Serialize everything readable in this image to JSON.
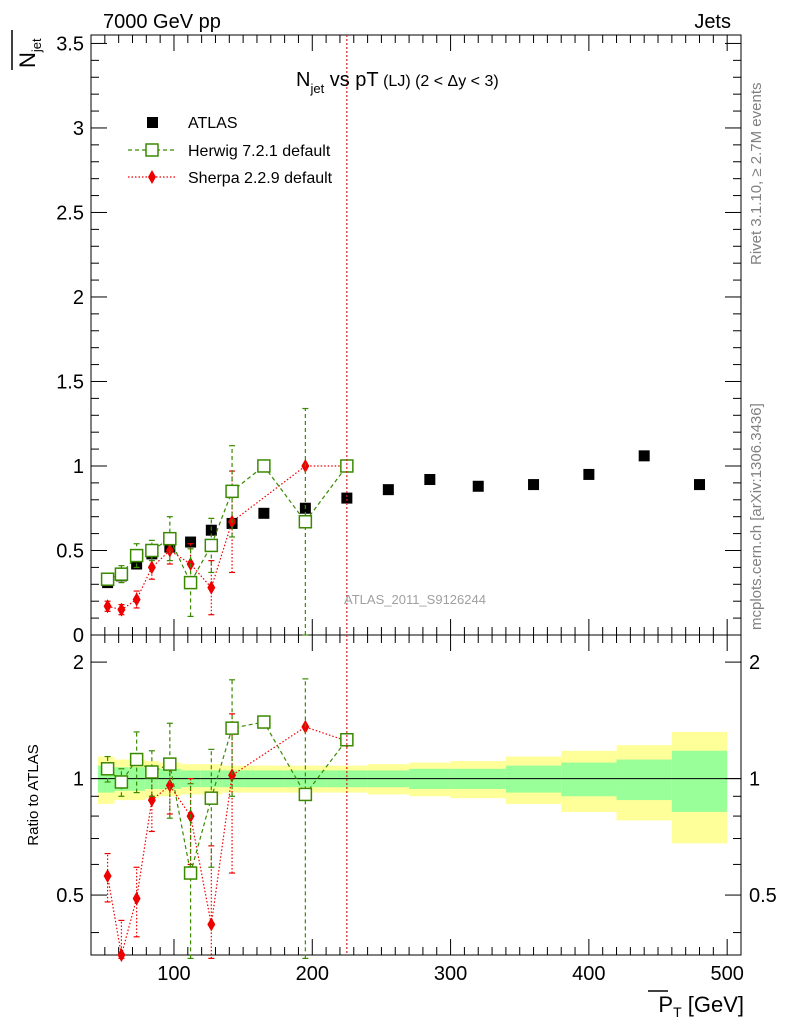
{
  "header": {
    "left": "7000 GeV pp",
    "right": "Jets"
  },
  "plot_title": {
    "main": "N",
    "main_sub": "jet",
    "rest": " vs pT",
    "detail": " (LJ) (2 < Δy < 3)"
  },
  "y_label": {
    "main": "N",
    "sub": "jet"
  },
  "ratio_ylabel": "Ratio to ATLAS",
  "x_label": {
    "main": "P",
    "sub": "T",
    "unit": " [GeV]"
  },
  "side_texts": {
    "rivet": "Rivet 3.1.10, ≥ 2.7M events",
    "mcplots": "mcplots.cern.ch [arXiv:1306.3436]"
  },
  "watermark": "ATLAS_2011_S9126244",
  "legend": {
    "position": "top-left",
    "entries": [
      {
        "key": "atlas",
        "label": "ATLAS"
      },
      {
        "key": "herwig",
        "label": "Herwig 7.2.1 default"
      },
      {
        "key": "sherpa",
        "label": "Sherpa 2.2.9 default"
      }
    ]
  },
  "colors": {
    "atlas": "#000000",
    "herwig": "#3a8a00",
    "sherpa": "#ee0000",
    "band_inner": "#99ff99",
    "band_outer": "#ffff99",
    "vline": "#d12020"
  },
  "chart_data": {
    "type": "scatter",
    "x_axis": {
      "min": 40,
      "max": 510,
      "ticks": [
        100,
        200,
        300,
        400,
        500
      ]
    },
    "main_y_axis": {
      "min": 0,
      "max": 3.55,
      "ticks": [
        0,
        0.5,
        1,
        1.5,
        2,
        2.5,
        3,
        3.5
      ]
    },
    "ratio_y_axis": {
      "min": 0.35,
      "max": 2.35,
      "log": true,
      "ticks": [
        0.5,
        1,
        2
      ]
    },
    "vertical_line_x": 225,
    "atlas": {
      "x": [
        52,
        62,
        73,
        84,
        97,
        112,
        127,
        142,
        165,
        195,
        225,
        255,
        285,
        320,
        360,
        400,
        440,
        480
      ],
      "y": [
        0.31,
        0.35,
        0.42,
        0.48,
        0.52,
        0.55,
        0.62,
        0.66,
        0.72,
        0.75,
        0.81,
        0.86,
        0.92,
        0.88,
        0.89,
        0.95,
        1.06,
        0.89
      ]
    },
    "herwig": {
      "x": [
        52,
        62,
        73,
        84,
        97,
        112,
        127,
        142,
        165,
        195,
        225
      ],
      "y": [
        0.33,
        0.36,
        0.47,
        0.5,
        0.57,
        0.31,
        0.53,
        0.85,
        1.0,
        0.67,
        1.0
      ],
      "err": [
        0.03,
        0.05,
        0.07,
        0.06,
        0.13,
        0.2,
        0.16,
        0.27,
        0.0,
        0.67,
        0.0
      ]
    },
    "sherpa": {
      "x": [
        52,
        62,
        73,
        84,
        97,
        112,
        127,
        142,
        195,
        225
      ],
      "y": [
        0.17,
        0.15,
        0.21,
        0.4,
        0.5,
        0.42,
        0.28,
        0.67,
        1.0,
        1.0
      ],
      "err": [
        0.03,
        0.03,
        0.05,
        0.07,
        0.08,
        0.12,
        0.16,
        0.3,
        0.0,
        0.0
      ]
    },
    "ratio": {
      "herwig": [
        1.06,
        0.98,
        1.12,
        1.04,
        1.09,
        0.57,
        0.89,
        1.35,
        1.4,
        0.91,
        1.26
      ],
      "herwig_err": [
        0.08,
        0.08,
        0.2,
        0.14,
        0.3,
        0.4,
        0.3,
        0.45,
        0.0,
        0.9,
        0.0
      ],
      "sherpa": [
        0.56,
        0.35,
        0.49,
        0.88,
        0.96,
        0.8,
        0.42,
        1.02,
        1.36,
        1.25
      ],
      "sherpa_err": [
        0.08,
        0.08,
        0.1,
        0.15,
        0.15,
        0.2,
        0.25,
        0.45,
        0.0,
        0.0
      ],
      "band_edges": [
        45,
        57,
        67,
        79,
        89,
        105,
        119,
        135,
        150,
        180,
        210,
        240,
        270,
        300,
        340,
        380,
        420,
        460,
        500
      ],
      "inner_half": [
        0.08,
        0.07,
        0.07,
        0.06,
        0.06,
        0.05,
        0.05,
        0.05,
        0.05,
        0.05,
        0.05,
        0.05,
        0.06,
        0.06,
        0.08,
        0.1,
        0.12,
        0.18
      ],
      "outer_half": [
        0.14,
        0.12,
        0.12,
        0.11,
        0.1,
        0.09,
        0.09,
        0.08,
        0.08,
        0.08,
        0.08,
        0.09,
        0.1,
        0.11,
        0.14,
        0.18,
        0.22,
        0.32
      ]
    }
  }
}
